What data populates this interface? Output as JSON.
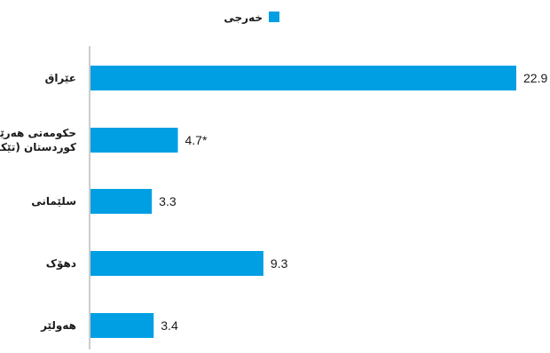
{
  "chart_data": {
    "type": "bar",
    "orientation": "horizontal",
    "categories": [
      [
        "عێراق"
      ],
      [
        "حکومەتی هەرێمی",
        "کوردستان (تێکرا)"
      ],
      [
        "سلێمانی"
      ],
      [
        "دهۆک"
      ],
      [
        "هەولێر"
      ]
    ],
    "series": [
      {
        "name": "خەرجی",
        "values": [
          22.9,
          4.7,
          3.3,
          9.3,
          3.4
        ],
        "value_labels": [
          "22.9",
          "4.7*",
          "3.3",
          "9.3",
          "3.4"
        ],
        "color": "#009FE3"
      }
    ],
    "xlim": [
      0,
      23
    ],
    "grid": false,
    "legend": "top-center",
    "axis_color": "#9a9a9a",
    "text_color": "#1a1a1a"
  }
}
